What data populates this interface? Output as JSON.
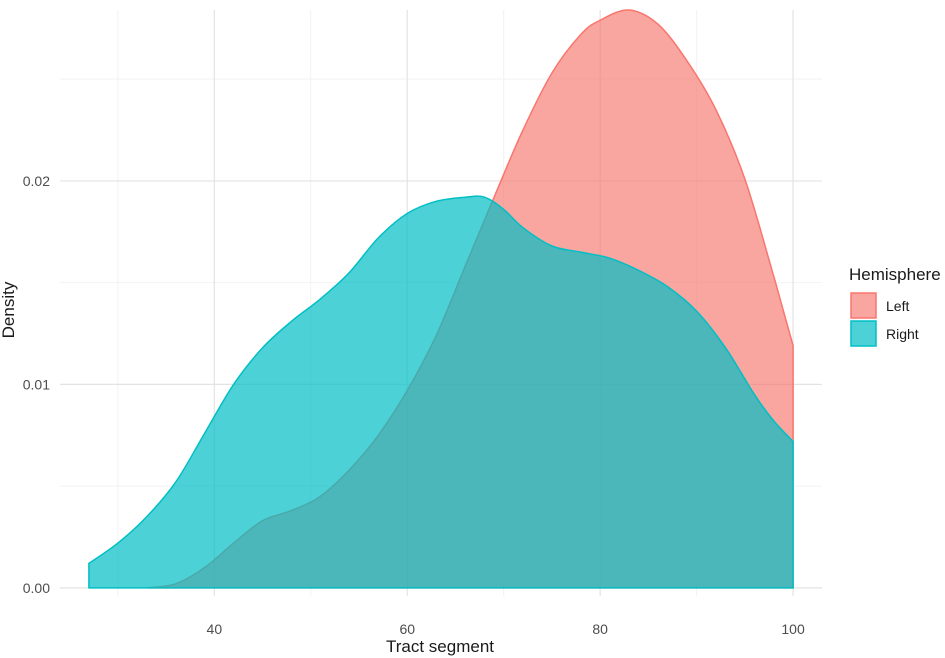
{
  "chart_data": {
    "type": "area",
    "subtype": "density",
    "title": "",
    "xlabel": "Tract segment",
    "ylabel": "Density",
    "xlim": [
      24,
      103
    ],
    "ylim": [
      -0.0004,
      0.0284
    ],
    "x_ticks": [
      40,
      60,
      80,
      100
    ],
    "x_tick_labels": [
      "40",
      "60",
      "80",
      "100"
    ],
    "y_ticks": [
      0.0,
      0.01,
      0.02
    ],
    "y_tick_labels": [
      "0.00",
      "0.01",
      "0.02"
    ],
    "grid": true,
    "legend": {
      "title": "Hemisphere",
      "position": "right"
    },
    "series": [
      {
        "name": "Left",
        "color": "#F8766D",
        "opacity": 0.65,
        "x": [
          33,
          36,
          39,
          42,
          45,
          48,
          51,
          54,
          57,
          60,
          63,
          66,
          69,
          72,
          75,
          78,
          80,
          83,
          86,
          89,
          92,
          95,
          98,
          100
        ],
        "y": [
          0.0,
          0.0002,
          0.001,
          0.0022,
          0.0033,
          0.0038,
          0.0045,
          0.0058,
          0.0075,
          0.0097,
          0.0124,
          0.0158,
          0.0192,
          0.0225,
          0.0253,
          0.0272,
          0.0279,
          0.0284,
          0.0277,
          0.0259,
          0.0235,
          0.0201,
          0.0153,
          0.0119
        ]
      },
      {
        "name": "Right",
        "color": "#00BFC4",
        "opacity": 0.7,
        "x": [
          27,
          30,
          33,
          36,
          39,
          42,
          45,
          48,
          51,
          54,
          57,
          60,
          63,
          66,
          68,
          70,
          72,
          75,
          78,
          81,
          84,
          87,
          90,
          93,
          96,
          98,
          100
        ],
        "y": [
          0.0012,
          0.0022,
          0.0035,
          0.0052,
          0.0076,
          0.01,
          0.0118,
          0.0131,
          0.0142,
          0.0155,
          0.0172,
          0.0184,
          0.019,
          0.0192,
          0.0192,
          0.0186,
          0.0177,
          0.0168,
          0.0165,
          0.0162,
          0.0156,
          0.0148,
          0.0136,
          0.0118,
          0.0095,
          0.0082,
          0.0072
        ]
      }
    ]
  }
}
